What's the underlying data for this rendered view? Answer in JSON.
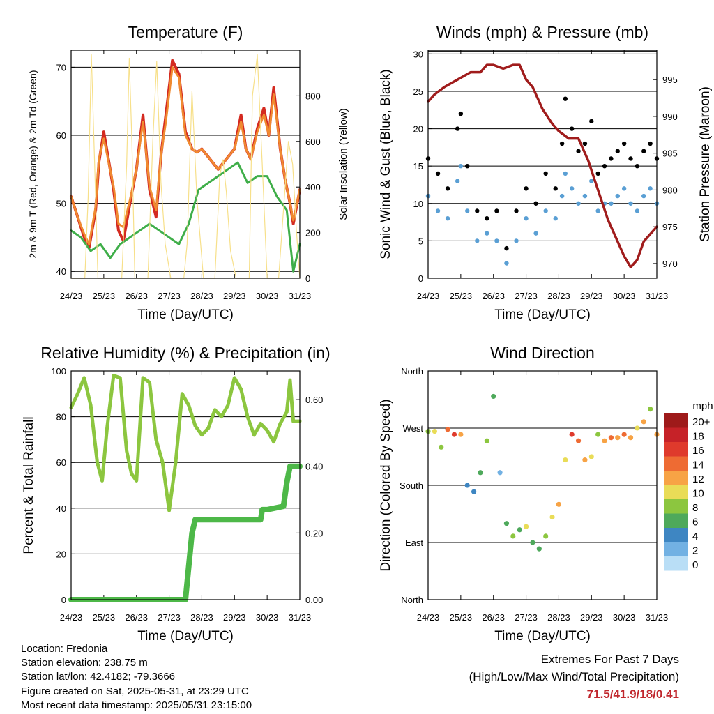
{
  "footer": {
    "location": "Location: Fredonia",
    "elevation": "Station elevation: 238.75 m",
    "latlon": "Station lat/lon: 42.4182; -79.3666",
    "created": "Figure created on Sat, 2025-05-31, at 23:29 UTC",
    "recent": "Most recent data timestamp: 2025/05/31 23:15:00"
  },
  "extremes": {
    "title": "Extremes For Past 7 Days",
    "subtitle": "(High/Low/Max Wind/Total Precipitation)",
    "values": "71.5/41.9/18/0.41"
  },
  "colors": {
    "temp2m": "#d42a20",
    "temp9m": "#f08a30",
    "dewpoint": "#3fae49",
    "solar": "#f7e08a",
    "gust": "#000000",
    "wind": "#5a9fd4",
    "pressure": "#a01c1c",
    "rh": "#8cc63f",
    "precip": "#4db848"
  },
  "chart_data": [
    {
      "id": "temperature",
      "type": "line",
      "title": "Temperature (F)",
      "xlabel": "Time (Day/UTC)",
      "ylabel": "2m & 9m T (Red, Orange) & 2m Td (Green)",
      "ylabel_right": "Solar Insolation (Yellow)",
      "xticks": [
        "24/23",
        "25/23",
        "26/23",
        "27/23",
        "28/23",
        "29/23",
        "30/23",
        "31/23"
      ],
      "xlim": [
        0,
        7
      ],
      "ylim": [
        39,
        72.5
      ],
      "yticks": [
        40,
        50,
        60,
        70
      ],
      "ylim_right": [
        0,
        1000
      ],
      "yticks_right": [
        0,
        200,
        400,
        600,
        800
      ],
      "grid": true,
      "series": [
        {
          "key": "temp2m",
          "x": [
            0,
            0.2,
            0.4,
            0.55,
            0.75,
            0.85,
            1.0,
            1.3,
            1.45,
            1.6,
            1.8,
            2.0,
            2.2,
            2.4,
            2.6,
            2.75,
            2.9,
            3.1,
            3.3,
            3.5,
            3.7,
            3.85,
            4.0,
            4.25,
            4.5,
            4.75,
            5.0,
            5.2,
            5.35,
            5.5,
            5.7,
            5.9,
            6.05,
            6.2,
            6.4,
            6.55,
            6.7,
            6.8,
            7.0
          ],
          "values": [
            51,
            48,
            45,
            43.5,
            49,
            56,
            60.5,
            52,
            46,
            44.5,
            50,
            55,
            63,
            52,
            48,
            57,
            63,
            71,
            69,
            60.5,
            58,
            57.5,
            58,
            56.5,
            55,
            56.5,
            58,
            63,
            58,
            56.5,
            61,
            64,
            60,
            67,
            58,
            53.5,
            50,
            47,
            52
          ]
        },
        {
          "key": "temp9m",
          "x": [
            0,
            0.2,
            0.4,
            0.55,
            0.75,
            0.85,
            1.0,
            1.3,
            1.45,
            1.6,
            1.8,
            2.0,
            2.2,
            2.4,
            2.6,
            2.75,
            2.9,
            3.1,
            3.3,
            3.5,
            3.7,
            3.85,
            4.0,
            4.25,
            4.5,
            4.75,
            5.0,
            5.2,
            5.35,
            5.5,
            5.7,
            5.9,
            6.05,
            6.2,
            6.4,
            6.55,
            6.7,
            6.8,
            7.0
          ],
          "values": [
            51,
            48,
            45.5,
            44,
            49.5,
            56.5,
            59.5,
            52.5,
            47,
            46.5,
            50.5,
            55,
            62,
            52.5,
            49,
            57,
            62,
            70,
            68.5,
            60,
            58,
            57.5,
            58,
            56.5,
            55,
            56.5,
            58,
            62,
            58,
            56.5,
            60.5,
            63,
            60,
            66,
            58,
            53.5,
            50,
            47.5,
            52
          ]
        },
        {
          "key": "dewpoint",
          "x": [
            0,
            0.3,
            0.6,
            0.9,
            1.2,
            1.5,
            1.8,
            2.1,
            2.4,
            2.7,
            3.0,
            3.3,
            3.6,
            3.9,
            4.2,
            4.5,
            4.8,
            5.1,
            5.4,
            5.7,
            6.0,
            6.3,
            6.6,
            6.8,
            6.9,
            7.0
          ],
          "values": [
            46,
            45,
            43,
            44,
            42,
            44,
            45,
            46,
            47,
            46,
            45,
            44,
            47,
            52,
            53,
            54,
            55,
            56,
            53,
            54,
            54,
            51,
            49,
            40,
            42,
            44
          ]
        },
        {
          "key": "solar",
          "axis": "right",
          "x": [
            0,
            0.42,
            0.52,
            0.62,
            0.72,
            0.82,
            1.25,
            1.55,
            1.7,
            1.78,
            1.86,
            1.95,
            2.35,
            2.5,
            2.62,
            2.75,
            2.88,
            3.05,
            3.45,
            3.55,
            3.7,
            3.85,
            4.05,
            4.4,
            4.55,
            4.65,
            4.75,
            4.88,
            5.05,
            5.45,
            5.55,
            5.7,
            5.85,
            6.0,
            6.35,
            6.55,
            6.65,
            6.78,
            6.9,
            7.0
          ],
          "values": [
            0,
            0,
            350,
            980,
            500,
            0,
            0,
            0,
            500,
            965,
            600,
            0,
            0,
            600,
            950,
            420,
            150,
            0,
            0,
            150,
            820,
            350,
            0,
            0,
            450,
            520,
            380,
            120,
            0,
            0,
            800,
            980,
            500,
            0,
            0,
            400,
            600,
            500,
            200,
            0
          ]
        }
      ]
    },
    {
      "id": "winds",
      "type": "scatter",
      "title": "Winds (mph) & Pressure (mb)",
      "xlabel": "Time (Day/UTC)",
      "ylabel": "Sonic Wind & Gust (Blue, Black)",
      "ylabel_right": "Station Pressure (Maroon)",
      "xticks": [
        "24/23",
        "25/23",
        "26/23",
        "27/23",
        "28/23",
        "29/23",
        "30/23",
        "31/23"
      ],
      "xlim": [
        0,
        7
      ],
      "ylim": [
        0,
        30.5
      ],
      "yticks": [
        0,
        5,
        10,
        15,
        20,
        25,
        30
      ],
      "ylim_right": [
        968,
        999
      ],
      "yticks_right": [
        970,
        975,
        980,
        985,
        990,
        995
      ],
      "grid": true,
      "series": [
        {
          "key": "gust",
          "x": [
            0,
            0.3,
            0.6,
            0.9,
            1.0,
            1.2,
            1.5,
            1.8,
            2.1,
            2.4,
            2.7,
            3.0,
            3.3,
            3.6,
            3.9,
            4.1,
            4.2,
            4.4,
            4.6,
            4.8,
            5.0,
            5.2,
            5.4,
            5.6,
            5.8,
            6.0,
            6.2,
            6.4,
            6.6,
            6.8,
            7.0
          ],
          "values": [
            16,
            14,
            12,
            20,
            22,
            15,
            9,
            8,
            9,
            4,
            9,
            12,
            10,
            14,
            12,
            18,
            24,
            20,
            17,
            18,
            21,
            14,
            15,
            16,
            17,
            18,
            16,
            15,
            17,
            18,
            16
          ]
        },
        {
          "key": "wind",
          "x": [
            0,
            0.3,
            0.6,
            0.9,
            1.0,
            1.2,
            1.5,
            1.8,
            2.1,
            2.4,
            2.7,
            3.0,
            3.3,
            3.6,
            3.9,
            4.1,
            4.2,
            4.4,
            4.6,
            4.8,
            5.0,
            5.2,
            5.4,
            5.6,
            5.8,
            6.0,
            6.2,
            6.4,
            6.6,
            6.8,
            7.0
          ],
          "values": [
            11,
            9,
            8,
            13,
            15,
            9,
            5,
            6,
            5,
            2,
            5,
            8,
            6,
            9,
            8,
            11,
            14,
            12,
            10,
            11,
            13,
            9,
            10,
            10,
            11,
            12,
            10,
            9,
            11,
            12,
            10
          ]
        },
        {
          "key": "pressure",
          "axis": "right",
          "x": [
            0,
            0.2,
            0.5,
            0.9,
            1.3,
            1.6,
            1.8,
            2.0,
            2.3,
            2.6,
            2.8,
            3.0,
            3.2,
            3.5,
            3.8,
            4.0,
            4.3,
            4.6,
            4.9,
            5.2,
            5.5,
            5.8,
            6.0,
            6.2,
            6.4,
            6.6,
            6.8,
            7.0
          ],
          "values": [
            992,
            993,
            994,
            995,
            996,
            996,
            997,
            997,
            996.5,
            997,
            997,
            995,
            994,
            991,
            989,
            988,
            987,
            987,
            984,
            980,
            976,
            973,
            971,
            969.5,
            970.5,
            973,
            974,
            975
          ]
        }
      ]
    },
    {
      "id": "humidity",
      "type": "line",
      "title": "Relative Humidity (%) & Precipitation (in)",
      "xlabel": "Time (Day/UTC)",
      "ylabel": "Percent & Total Rainfall",
      "xticks": [
        "24/23",
        "25/23",
        "26/23",
        "27/23",
        "28/23",
        "29/23",
        "30/23",
        "31/23"
      ],
      "xlim": [
        0,
        7
      ],
      "ylim": [
        0,
        100
      ],
      "yticks": [
        0,
        20,
        40,
        60,
        80,
        100
      ],
      "ylim_right": [
        0,
        0.686
      ],
      "yticks_right": [
        "0.00",
        "0.20",
        "0.40",
        "0.60"
      ],
      "grid": true,
      "series": [
        {
          "key": "rh",
          "x": [
            0,
            0.2,
            0.4,
            0.6,
            0.8,
            0.95,
            1.1,
            1.3,
            1.5,
            1.7,
            1.85,
            2.0,
            2.2,
            2.4,
            2.6,
            2.8,
            3.0,
            3.2,
            3.4,
            3.6,
            3.8,
            4.0,
            4.2,
            4.4,
            4.6,
            4.8,
            5.0,
            5.2,
            5.4,
            5.6,
            5.8,
            6.0,
            6.2,
            6.4,
            6.6,
            6.7,
            6.8,
            7.0
          ],
          "values": [
            84,
            90,
            97,
            85,
            60,
            52,
            75,
            98,
            97,
            65,
            55,
            52,
            97,
            95,
            70,
            60,
            39,
            60,
            90,
            85,
            76,
            72,
            75,
            83,
            80,
            85,
            97,
            92,
            80,
            72,
            77,
            74,
            69,
            77,
            82,
            96,
            78,
            78
          ]
        },
        {
          "key": "precip",
          "axis": "right",
          "x": [
            0,
            3.5,
            3.6,
            3.7,
            3.8,
            4.0,
            5.0,
            5.8,
            5.85,
            6.0,
            6.5,
            6.6,
            6.7,
            7.0
          ],
          "values": [
            0,
            0,
            0.1,
            0.2,
            0.24,
            0.24,
            0.24,
            0.24,
            0.27,
            0.27,
            0.28,
            0.35,
            0.4,
            0.4
          ]
        }
      ]
    },
    {
      "id": "direction",
      "type": "scatter",
      "title": "Wind Direction",
      "xlabel": "Time (Day/UTC)",
      "ylabel": "Direction (Colored By Speed)",
      "xticks": [
        "24/23",
        "25/23",
        "26/23",
        "27/23",
        "28/23",
        "29/23",
        "30/23",
        "31/23"
      ],
      "xlim": [
        0,
        7
      ],
      "ylim": [
        0,
        360
      ],
      "yticks": [
        "North",
        "East",
        "South",
        "West",
        "North"
      ],
      "grid": true,
      "legend": {
        "title": "mph",
        "labels": [
          "20+",
          "18",
          "16",
          "14",
          "12",
          "10",
          "8",
          "6",
          "4",
          "2",
          "0"
        ],
        "colors": [
          "#9e1a1a",
          "#c62228",
          "#df3a2c",
          "#ee6b33",
          "#f7a345",
          "#e9dc57",
          "#8cc63f",
          "#4ea95b",
          "#3e86c2",
          "#72b1e3",
          "#b9def6"
        ],
        "position": "right"
      },
      "series": [
        {
          "key": "direction",
          "x": [
            0,
            0.2,
            0.4,
            0.6,
            0.8,
            1.0,
            1.2,
            1.4,
            1.6,
            1.8,
            2.0,
            2.2,
            2.4,
            2.6,
            2.8,
            3.0,
            3.2,
            3.4,
            3.6,
            3.8,
            4.0,
            4.2,
            4.4,
            4.6,
            4.8,
            5.0,
            5.2,
            5.4,
            5.6,
            5.8,
            6.0,
            6.2,
            6.4,
            6.6,
            6.8,
            7.0
          ],
          "values": [
            265,
            265,
            240,
            268,
            260,
            260,
            180,
            170,
            200,
            250,
            320,
            200,
            120,
            100,
            110,
            115,
            90,
            80,
            100,
            130,
            150,
            220,
            260,
            250,
            220,
            225,
            260,
            250,
            255,
            255,
            260,
            255,
            270,
            280,
            300,
            260
          ],
          "speeds": [
            8,
            10,
            8,
            14,
            16,
            12,
            4,
            4,
            6,
            8,
            6,
            2,
            6,
            8,
            6,
            10,
            6,
            6,
            8,
            10,
            12,
            10,
            16,
            14,
            12,
            10,
            8,
            12,
            14,
            12,
            14,
            12,
            10,
            12,
            8,
            12
          ]
        }
      ]
    }
  ]
}
